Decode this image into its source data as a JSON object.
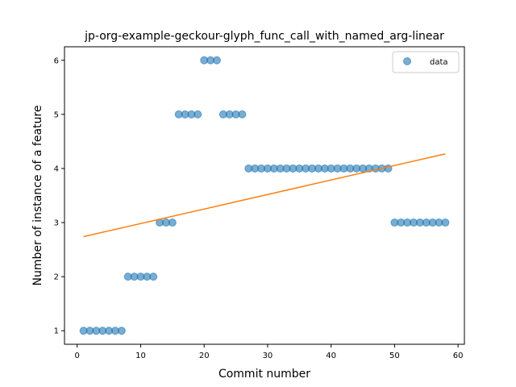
{
  "chart_data": {
    "type": "scatter",
    "title": "jp-org-example-geckour-glyph_func_call_with_named_arg-linear",
    "xlabel": "Commit number",
    "ylabel": "Number of instance of a feature",
    "xlim": [
      -2,
      61
    ],
    "ylim": [
      0.75,
      6.25
    ],
    "xticks": [
      0,
      10,
      20,
      30,
      40,
      50,
      60
    ],
    "yticks": [
      1,
      2,
      3,
      4,
      5,
      6
    ],
    "grid": false,
    "legend_position": "top-right",
    "series": [
      {
        "name": "data",
        "kind": "scatter",
        "color": "#1f77b4",
        "x": [
          1,
          2,
          3,
          4,
          5,
          6,
          7,
          8,
          9,
          10,
          11,
          12,
          13,
          14,
          15,
          16,
          17,
          18,
          19,
          20,
          21,
          22,
          23,
          24,
          25,
          26,
          27,
          28,
          29,
          30,
          31,
          32,
          33,
          34,
          35,
          36,
          37,
          38,
          39,
          40,
          41,
          42,
          43,
          44,
          45,
          46,
          47,
          48,
          49,
          50,
          51,
          52,
          53,
          54,
          55,
          56,
          57,
          58
        ],
        "y": [
          1,
          1,
          1,
          1,
          1,
          1,
          1,
          2,
          2,
          2,
          2,
          2,
          3,
          3,
          3,
          5,
          5,
          5,
          5,
          6,
          6,
          6,
          5,
          5,
          5,
          5,
          4,
          4,
          4,
          4,
          4,
          4,
          4,
          4,
          4,
          4,
          4,
          4,
          4,
          4,
          4,
          4,
          4,
          4,
          4,
          4,
          4,
          4,
          4,
          3,
          3,
          3,
          3,
          3,
          3,
          3,
          3,
          3
        ]
      },
      {
        "kind": "line",
        "color": "#ff7f0e",
        "x": [
          1,
          58
        ],
        "y": [
          2.74,
          4.27
        ]
      }
    ]
  }
}
